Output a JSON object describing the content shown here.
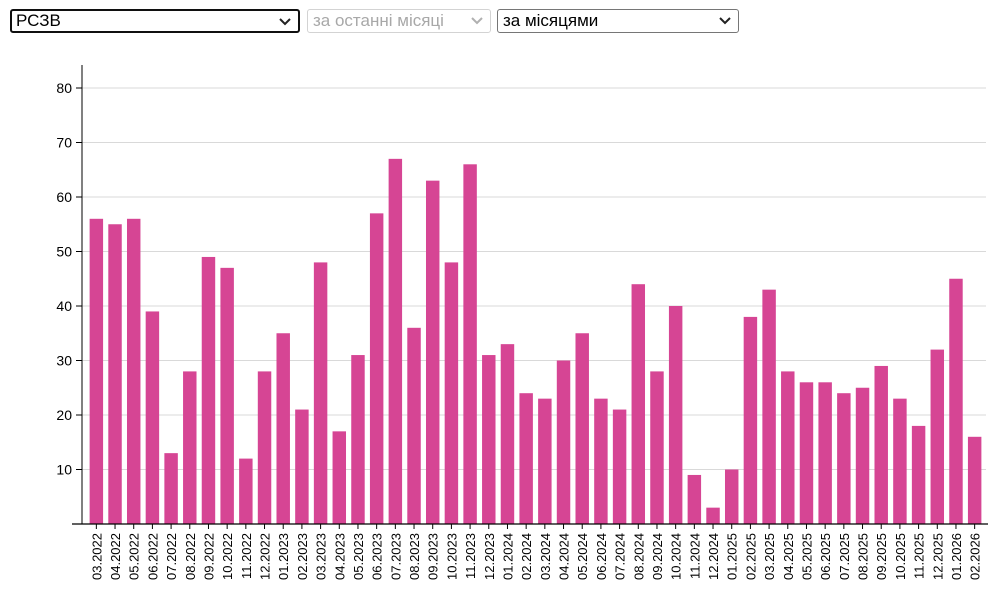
{
  "controls": {
    "region_select": {
      "value": "РСЗВ"
    },
    "period_select": {
      "value": "за останні місяці",
      "disabled": true
    },
    "aggregation_select": {
      "value": "за місяцями"
    }
  },
  "colors": {
    "bar": "#d64594",
    "grid": "#d9d9d9",
    "axis": "#000000"
  },
  "chart_data": {
    "type": "bar",
    "title": "",
    "xlabel": "",
    "ylabel": "",
    "ylim": [
      0,
      84
    ],
    "yticks": [
      10,
      20,
      30,
      40,
      50,
      60,
      70,
      80
    ],
    "grid": true,
    "categories": [
      "03.2022",
      "04.2022",
      "05.2022",
      "06.2022",
      "07.2022",
      "08.2022",
      "09.2022",
      "10.2022",
      "11.2022",
      "12.2022",
      "01.2023",
      "02.2023",
      "03.2023",
      "04.2023",
      "05.2023",
      "06.2023",
      "07.2023",
      "08.2023",
      "09.2023",
      "10.2023",
      "11.2023",
      "12.2023",
      "01.2024",
      "02.2024",
      "03.2024",
      "04.2024",
      "05.2024",
      "06.2024",
      "07.2024",
      "08.2024",
      "09.2024",
      "10.2024",
      "11.2024",
      "12.2024",
      "01.2025",
      "02.2025",
      "03.2025",
      "04.2025",
      "05.2025",
      "06.2025",
      "07.2025",
      "08.2025",
      "09.2025",
      "10.2025",
      "11.2025",
      "12.2025",
      "01.2026",
      "02.2026"
    ],
    "values": [
      56,
      55,
      56,
      39,
      13,
      28,
      49,
      47,
      12,
      28,
      35,
      21,
      48,
      17,
      31,
      57,
      67,
      36,
      63,
      48,
      66,
      31,
      33,
      24,
      23,
      30,
      35,
      23,
      21,
      44,
      28,
      40,
      9,
      3,
      10,
      38,
      43,
      28,
      26,
      26,
      24,
      25,
      29,
      23,
      18,
      32,
      45,
      16
    ]
  }
}
